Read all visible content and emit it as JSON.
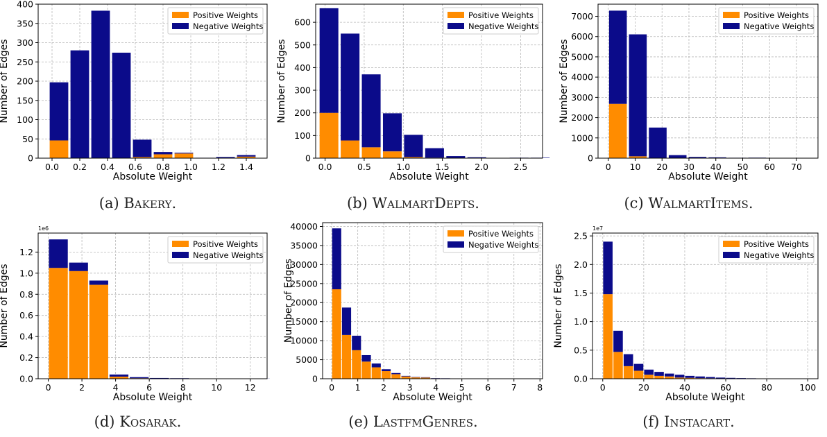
{
  "colors": {
    "positive": "#ff8c00",
    "negative": "#0b0b8a",
    "grid": "#b8b8b8"
  },
  "chart_data": [
    {
      "type": "bar",
      "stacked": true,
      "grid": true,
      "legend_placement": "top-right",
      "caption_tag": "(a)",
      "caption_name": "Bakery",
      "caption_end": ".",
      "xlabel": "Absolute Weight",
      "ylabel": "Number of Edges",
      "xlim": [
        -0.1,
        1.55
      ],
      "ylim": [
        0,
        400
      ],
      "xticks": [
        0.0,
        0.2,
        0.4,
        0.6,
        0.8,
        1.0,
        1.2,
        1.4
      ],
      "xtick_labels": [
        "0.0",
        "0.2",
        "0.4",
        "0.6",
        "0.8",
        "1.0",
        "1.2",
        "1.4"
      ],
      "yticks": [
        0,
        50,
        100,
        150,
        200,
        250,
        300,
        350,
        400
      ],
      "ytick_labels": [
        "0",
        "50",
        "100",
        "150",
        "200",
        "250",
        "300",
        "350",
        "400"
      ],
      "sci_offset": "",
      "bar_width": 0.134,
      "x": [
        0.05,
        0.2,
        0.35,
        0.5,
        0.65,
        0.8,
        0.95,
        1.1,
        1.25,
        1.4
      ],
      "series": [
        {
          "name": "Positive Weights",
          "values": [
            46,
            0,
            0,
            0,
            3,
            10,
            12,
            0,
            0,
            4
          ]
        },
        {
          "name": "Negative Weights",
          "values": [
            151,
            280,
            383,
            274,
            45,
            6,
            2,
            1,
            3,
            4
          ]
        }
      ]
    },
    {
      "type": "bar",
      "stacked": true,
      "grid": true,
      "legend_placement": "top-right",
      "caption_tag": "(b)",
      "caption_name": "WalmartDepts",
      "caption_end": ".",
      "xlabel": "Absolute Weight",
      "ylabel": "Number of Edges",
      "xlim": [
        -0.12,
        2.78
      ],
      "ylim": [
        0,
        680
      ],
      "xticks": [
        0.0,
        0.5,
        1.0,
        1.5,
        2.0,
        2.5
      ],
      "xtick_labels": [
        "0.0",
        "0.5",
        "1.0",
        "1.5",
        "2.0",
        "2.5"
      ],
      "yticks": [
        0,
        100,
        200,
        300,
        400,
        500,
        600
      ],
      "ytick_labels": [
        "0",
        "100",
        "200",
        "300",
        "400",
        "500",
        "600"
      ],
      "sci_offset": "",
      "bar_width": 0.24,
      "x": [
        0.05,
        0.32,
        0.59,
        0.86,
        1.13,
        1.4,
        1.67,
        1.94,
        2.21,
        2.48,
        2.75
      ],
      "series": [
        {
          "name": "Positive Weights",
          "values": [
            200,
            78,
            48,
            30,
            5,
            2,
            1,
            0,
            0,
            0,
            0
          ]
        },
        {
          "name": "Negative Weights",
          "values": [
            462,
            472,
            322,
            168,
            98,
            42,
            8,
            4,
            1,
            2,
            2
          ]
        }
      ]
    },
    {
      "type": "bar",
      "stacked": true,
      "grid": true,
      "legend_placement": "top-right",
      "caption_tag": "(c)",
      "caption_name": "WalmartItems",
      "caption_end": ".",
      "xlabel": "Absolute Weight",
      "ylabel": "Number of Edges",
      "xlim": [
        -3.8,
        78
      ],
      "ylim": [
        0,
        7600
      ],
      "xticks": [
        0,
        10,
        20,
        30,
        40,
        50,
        60,
        70
      ],
      "xtick_labels": [
        "0",
        "10",
        "20",
        "30",
        "40",
        "50",
        "60",
        "70"
      ],
      "yticks": [
        0,
        1000,
        2000,
        3000,
        4000,
        5000,
        6000,
        7000
      ],
      "ytick_labels": [
        "0",
        "1000",
        "2000",
        "3000",
        "4000",
        "5000",
        "6000",
        "7000"
      ],
      "sci_offset": "",
      "bar_width": 6.6,
      "x": [
        3.6,
        11.0,
        18.4,
        25.8,
        33.2,
        40.6,
        48.0,
        55.4,
        62.8,
        70.2
      ],
      "series": [
        {
          "name": "Positive Weights",
          "values": [
            2680,
            90,
            10,
            0,
            0,
            0,
            0,
            0,
            0,
            0
          ]
        },
        {
          "name": "Negative Weights",
          "values": [
            4600,
            6020,
            1500,
            150,
            60,
            40,
            20,
            25,
            10,
            5
          ]
        }
      ]
    },
    {
      "type": "bar",
      "stacked": true,
      "grid": true,
      "legend_placement": "top-right",
      "caption_tag": "(d)",
      "caption_name": "Kosarak",
      "caption_end": ".",
      "xlabel": "Absolute Weight",
      "ylabel": "Number of Edges",
      "xlim": [
        -0.6,
        13.0
      ],
      "ylim": [
        0,
        1.38
      ],
      "xticks": [
        0,
        2,
        4,
        6,
        8,
        10,
        12
      ],
      "xtick_labels": [
        "0",
        "2",
        "4",
        "6",
        "8",
        "10",
        "12"
      ],
      "yticks": [
        0,
        0.2,
        0.4,
        0.6,
        0.8,
        1.0,
        1.2
      ],
      "ytick_labels": [
        "0.0",
        "0.2",
        "0.4",
        "0.6",
        "0.8",
        "1.0",
        "1.2"
      ],
      "sci_offset": "1e6",
      "bar_width": 1.12,
      "x": [
        0.6,
        1.8,
        3.0,
        4.2,
        5.4,
        6.6,
        7.8,
        9.0,
        10.2,
        11.4,
        12.6
      ],
      "series": [
        {
          "name": "Positive Weights",
          "values": [
            1.05,
            1.02,
            0.89,
            0.02,
            0.005,
            0.003,
            0.002,
            0.001,
            0,
            0,
            0
          ]
        },
        {
          "name": "Negative Weights",
          "values": [
            0.27,
            0.08,
            0.04,
            0.02,
            0.01,
            0.004,
            0.003,
            0.002,
            0.001,
            0.001,
            0.001
          ]
        }
      ]
    },
    {
      "type": "bar",
      "stacked": true,
      "grid": true,
      "legend_placement": "top-right",
      "caption_tag": "(e)",
      "caption_name": "LastfmGenres",
      "caption_end": ".",
      "xlabel": "Absolute Weight",
      "ylabel": "Number of Edges",
      "xlim": [
        -0.35,
        8.1
      ],
      "ylim": [
        0,
        41000
      ],
      "xticks": [
        0,
        1,
        2,
        3,
        4,
        5,
        6,
        7,
        8
      ],
      "xtick_labels": [
        "0",
        "1",
        "2",
        "3",
        "4",
        "5",
        "6",
        "7",
        "8"
      ],
      "yticks": [
        0,
        5000,
        10000,
        15000,
        20000,
        25000,
        30000,
        35000,
        40000
      ],
      "ytick_labels": [
        "0",
        "5000",
        "10000",
        "15000",
        "20000",
        "25000",
        "30000",
        "35000",
        "40000"
      ],
      "sci_offset": "",
      "bar_width": 0.35,
      "x": [
        0.19,
        0.57,
        0.95,
        1.33,
        1.71,
        2.09,
        2.47,
        2.85,
        3.23,
        3.61,
        3.99,
        4.37,
        4.75,
        5.13,
        5.51,
        5.89,
        6.27,
        6.65,
        7.03,
        7.41
      ],
      "series": [
        {
          "name": "Positive Weights",
          "values": [
            23500,
            11500,
            7500,
            4500,
            3000,
            2000,
            1200,
            600,
            350,
            300,
            100,
            80,
            60,
            40,
            30,
            20,
            10,
            10,
            5,
            5
          ]
        },
        {
          "name": "Negative Weights",
          "values": [
            16000,
            7200,
            3800,
            1700,
            1000,
            500,
            300,
            150,
            100,
            100,
            50,
            40,
            30,
            20,
            20,
            10,
            10,
            5,
            5,
            5
          ]
        }
      ]
    },
    {
      "type": "bar",
      "stacked": true,
      "grid": true,
      "legend_placement": "top-right",
      "caption_tag": "(f)",
      "caption_name": "Instacart",
      "caption_end": ".",
      "xlabel": "Absolute Weight",
      "ylabel": "Number of Edges",
      "xlim": [
        -5.0,
        105.0
      ],
      "ylim": [
        0,
        2.55
      ],
      "xticks": [
        0,
        20,
        40,
        60,
        80,
        100
      ],
      "xtick_labels": [
        "0",
        "20",
        "40",
        "60",
        "80",
        "100"
      ],
      "yticks": [
        0,
        0.5,
        1.0,
        1.5,
        2.0,
        2.5
      ],
      "ytick_labels": [
        "0.0",
        "0.5",
        "1.0",
        "1.5",
        "2.0",
        "2.5"
      ],
      "sci_offset": "1e7",
      "bar_width": 4.6,
      "x": [
        2.5,
        7.5,
        12.5,
        17.5,
        22.5,
        27.5,
        32.5,
        37.5,
        42.5,
        47.5,
        52.5,
        57.5,
        62.5,
        67.5,
        72.5
      ],
      "series": [
        {
          "name": "Positive Weights",
          "values": [
            1.48,
            0.47,
            0.22,
            0.14,
            0.07,
            0.05,
            0.04,
            0.02,
            0.015,
            0.01,
            0.008,
            0.005,
            0.004,
            0.003,
            0.002
          ]
        },
        {
          "name": "Negative Weights",
          "values": [
            0.92,
            0.37,
            0.21,
            0.12,
            0.09,
            0.07,
            0.05,
            0.05,
            0.035,
            0.03,
            0.022,
            0.015,
            0.011,
            0.008,
            0.006
          ]
        }
      ]
    }
  ]
}
